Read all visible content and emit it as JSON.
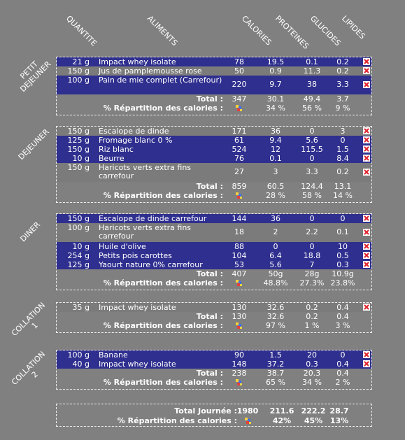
{
  "headers": {
    "quantite": "QUANTITE",
    "aliments": "ALIMENTS",
    "calories": "CALORIES",
    "proteines": "PROTEINES",
    "glucides": "GLUCIDES",
    "lipides": "LIPIDES"
  },
  "labels": {
    "total": "Total :",
    "repartition": "% Répartition des calories :",
    "total_journee": "Total Journée :"
  },
  "meals": [
    {
      "name_line1": "PETIT",
      "name_line2": "DEJEUNER",
      "items": [
        {
          "qty": "21 g",
          "food": "Impact whey isolate",
          "cal": "78",
          "pro": "19.5",
          "glu": "0.1",
          "lip": "0.2"
        },
        {
          "qty": "150 g",
          "food": "Jus de pamplemousse rose",
          "cal": "50",
          "pro": "0.9",
          "glu": "11.3",
          "lip": "0.2"
        },
        {
          "qty": "100 g",
          "food": "Pain de mie complet (Carrefour)",
          "cal": "220",
          "pro": "9.7",
          "glu": "38",
          "lip": "3.3"
        }
      ],
      "total": {
        "cal": "347",
        "pro": "30.1",
        "glu": "49.4",
        "lip": "3.7"
      },
      "pct": {
        "pro": "34 %",
        "glu": "56 %",
        "lip": "9 %"
      }
    },
    {
      "name_line1": "DEJEUNER",
      "name_line2": "",
      "items": [
        {
          "qty": "150 g",
          "food": "Escalope de dinde",
          "cal": "171",
          "pro": "36",
          "glu": "0",
          "lip": "3"
        },
        {
          "qty": "125 g",
          "food": "Fromage blanc 0 %",
          "cal": "61",
          "pro": "9.4",
          "glu": "5.6",
          "lip": "0"
        },
        {
          "qty": "150 g",
          "food": "Riz blanc",
          "cal": "524",
          "pro": "12",
          "glu": "115.5",
          "lip": "1.5"
        },
        {
          "qty": "10 g",
          "food": "Beurre",
          "cal": "76",
          "pro": "0.1",
          "glu": "0",
          "lip": "8.4"
        },
        {
          "qty": "150 g",
          "food": "Haricots verts extra fins carrefour",
          "cal": "27",
          "pro": "3",
          "glu": "3.3",
          "lip": "0.2"
        }
      ],
      "total": {
        "cal": "859",
        "pro": "60.5",
        "glu": "124.4",
        "lip": "13.1"
      },
      "pct": {
        "pro": "28 %",
        "glu": "58 %",
        "lip": "14 %"
      }
    },
    {
      "name_line1": "DINER",
      "name_line2": "",
      "items": [
        {
          "qty": "150 g",
          "food": "Escalope de dinde carrefour",
          "cal": "144",
          "pro": "36",
          "glu": "0",
          "lip": "0"
        },
        {
          "qty": "100 g",
          "food": "Haricots verts extra fins carrefour",
          "cal": "18",
          "pro": "2",
          "glu": "2.2",
          "lip": "0.1"
        },
        {
          "qty": "10 g",
          "food": "Huile d'olive",
          "cal": "88",
          "pro": "0",
          "glu": "0",
          "lip": "10"
        },
        {
          "qty": "254 g",
          "food": "Petits pois carottes",
          "cal": "104",
          "pro": "6.4",
          "glu": "18.8",
          "lip": "0.5"
        },
        {
          "qty": "125 g",
          "food": "Yaourt nature 0% carrefour",
          "cal": "53",
          "pro": "5.6",
          "glu": "7",
          "lip": "0.3"
        }
      ],
      "total": {
        "cal": "407",
        "pro": "50g",
        "glu": "28g",
        "lip": "10.9g"
      },
      "pct": {
        "pro": "48.8%",
        "glu": "27.3%",
        "lip": "23.8%"
      }
    },
    {
      "name_line1": "COLLATION",
      "name_line2": "1",
      "items": [
        {
          "qty": "35 g",
          "food": "Impact whey isolate",
          "cal": "130",
          "pro": "32.6",
          "glu": "0.2",
          "lip": "0.4"
        }
      ],
      "total": {
        "cal": "130",
        "pro": "32.6",
        "glu": "0.2",
        "lip": "0.4"
      },
      "pct": {
        "pro": "97 %",
        "glu": "1 %",
        "lip": "3 %"
      }
    },
    {
      "name_line1": "COLLATION",
      "name_line2": "2",
      "items": [
        {
          "qty": "100 g",
          "food": "Banane",
          "cal": "90",
          "pro": "1.5",
          "glu": "20",
          "lip": "0"
        },
        {
          "qty": "40 g",
          "food": "Impact whey isolate",
          "cal": "148",
          "pro": "37.2",
          "glu": "0.3",
          "lip": "0.4"
        }
      ],
      "total": {
        "cal": "238",
        "pro": "38.7",
        "glu": "20.3",
        "lip": "0.4"
      },
      "pct": {
        "pro": "65 %",
        "glu": "34 %",
        "lip": "2 %"
      }
    }
  ],
  "day": {
    "total": {
      "cal": "1980",
      "pro": "211.6",
      "glu": "222.2",
      "lip": "28.7"
    },
    "pct": {
      "pro": "42%",
      "glu": "45%",
      "lip": "13%"
    }
  },
  "colors": {
    "background": "#808080",
    "row_highlight": "#2f2f8f",
    "delete_icon": "#e0202a"
  },
  "icons": {
    "delete": "delete-icon",
    "pie": "pie-chart-icon"
  }
}
